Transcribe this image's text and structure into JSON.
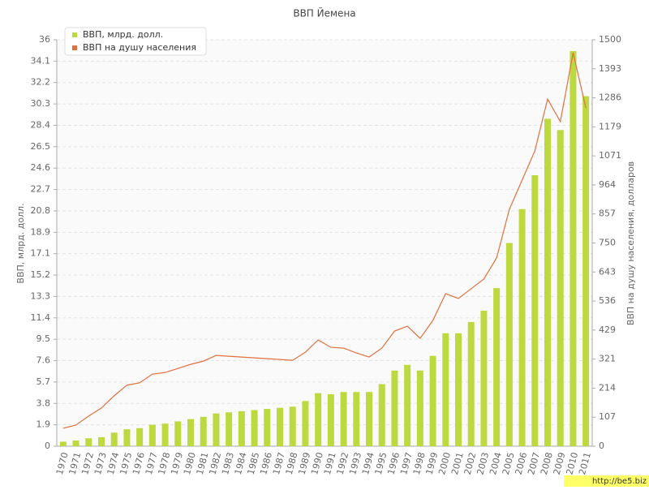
{
  "chart_data": {
    "type": "bar-line",
    "title": "ВВП Йемена",
    "y_label": "ВВП, млрд. долл.",
    "y2_label": "ВВП на душу населения, долларов",
    "categories": [
      "1970",
      "1971",
      "1972",
      "1973",
      "1974",
      "1975",
      "1976",
      "1977",
      "1978",
      "1979",
      "1980",
      "1981",
      "1982",
      "1983",
      "1984",
      "1985",
      "1986",
      "1987",
      "1988",
      "1989",
      "1990",
      "1991",
      "1992",
      "1993",
      "1994",
      "1995",
      "1996",
      "1997",
      "1998",
      "1999",
      "2000",
      "2001",
      "2002",
      "2003",
      "2004",
      "2005",
      "2006",
      "2007",
      "2008",
      "2009",
      "2010",
      "2011"
    ],
    "series": [
      {
        "name": "ВВП, млрд. долл.",
        "type": "bar",
        "color": "#bcd93f",
        "values": [
          0.4,
          0.5,
          0.7,
          0.8,
          1.2,
          1.5,
          1.6,
          1.9,
          2.0,
          2.2,
          2.4,
          2.6,
          2.9,
          3.0,
          3.1,
          3.2,
          3.3,
          3.4,
          3.5,
          4.0,
          4.7,
          4.6,
          4.8,
          4.8,
          4.8,
          5.5,
          6.7,
          7.2,
          6.7,
          8.0,
          10.0,
          10.0,
          11.0,
          12.0,
          14.0,
          18.0,
          21.0,
          24.0,
          29.0,
          28.0,
          35.0,
          31.0
        ]
      },
      {
        "name": "ВВП на душу населения",
        "type": "line",
        "axis": "y2",
        "color": "#e0703f",
        "values": [
          66,
          78,
          111,
          141,
          186,
          225,
          234,
          266,
          272,
          287,
          302,
          314,
          335,
          332,
          329,
          326,
          323,
          320,
          317,
          347,
          392,
          365,
          362,
          344,
          329,
          362,
          425,
          443,
          398,
          464,
          563,
          545,
          581,
          617,
          695,
          874,
          982,
          1090,
          1281,
          1198,
          1452,
          1248
        ]
      }
    ],
    "ylim": [
      0,
      36
    ],
    "yticks": [
      0,
      {
        "value": 1.8947,
        "label": "1.9"
      },
      {
        "value": 3.7895,
        "label": "3.8"
      },
      {
        "value": 5.6842,
        "label": "5.7"
      },
      {
        "value": 7.5789,
        "label": "7.6"
      },
      {
        "value": 9.4737,
        "label": "9.5"
      },
      {
        "value": 11.3684,
        "label": "11.4"
      },
      {
        "value": 13.2632,
        "label": "13.3"
      },
      {
        "value": 15.1579,
        "label": "15.2"
      },
      {
        "value": 17.0526,
        "label": "17.1"
      },
      {
        "value": 18.9474,
        "label": "18.9"
      },
      {
        "value": 20.8421,
        "label": "20.8"
      },
      {
        "value": 22.7368,
        "label": "22.7"
      },
      {
        "value": 24.6316,
        "label": "24.6"
      },
      {
        "value": 26.5263,
        "label": "26.5"
      },
      {
        "value": 28.4211,
        "label": "28.4"
      },
      {
        "value": 30.3158,
        "label": "30.3"
      },
      {
        "value": 32.2105,
        "label": "32.2"
      },
      {
        "value": 34.1053,
        "label": "34.1"
      },
      36
    ],
    "y2lim": [
      0,
      1500
    ],
    "y2ticks": [
      0,
      {
        "value": 107.1429,
        "label": "107"
      },
      {
        "value": 214.2857,
        "label": "214"
      },
      {
        "value": 321.4286,
        "label": "321"
      },
      {
        "value": 428.5714,
        "label": "429"
      },
      {
        "value": 535.7143,
        "label": "536"
      },
      {
        "value": 642.8571,
        "label": "643"
      },
      750,
      {
        "value": 857.1429,
        "label": "857"
      },
      {
        "value": 964.2857,
        "label": "964"
      },
      {
        "value": 1071.4286,
        "label": "1071"
      },
      {
        "value": 1178.5714,
        "label": "1179"
      },
      {
        "value": 1285.7143,
        "label": "1286"
      },
      {
        "value": 1392.8571,
        "label": "1393"
      },
      1500
    ],
    "grid": true,
    "legend": "top-left",
    "watermark": "http://be5.biz"
  }
}
